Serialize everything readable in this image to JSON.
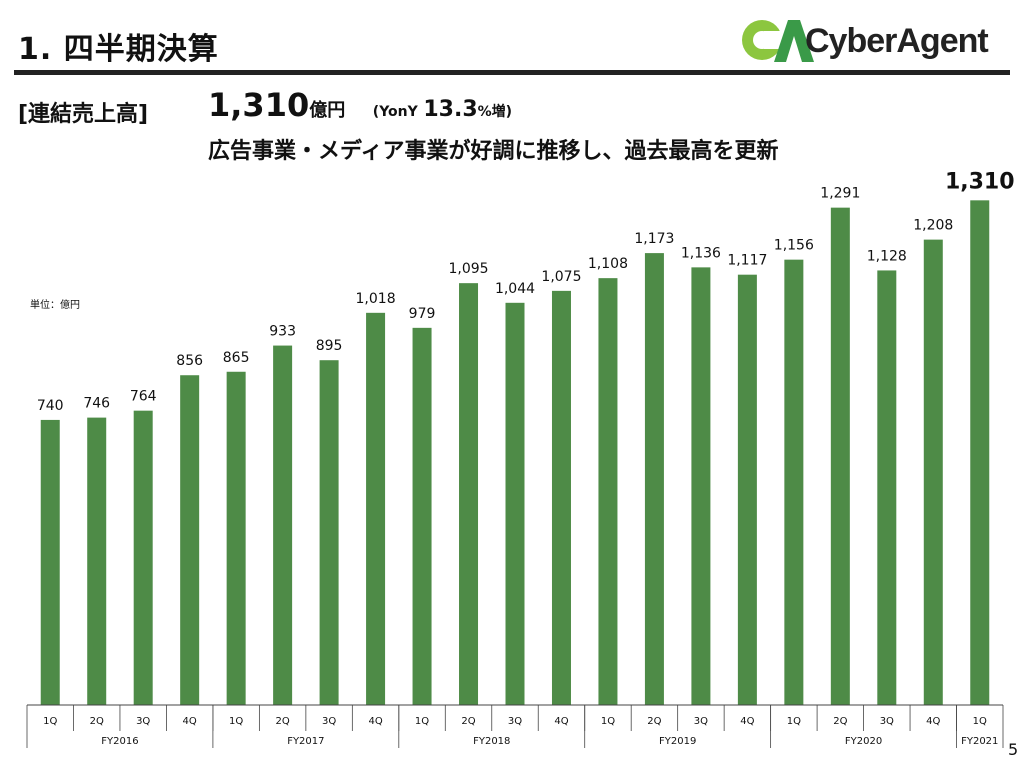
{
  "header": {
    "title": "1. 四半期決算",
    "logo_text": "CyberAgent",
    "logo_mark": "CA"
  },
  "summary": {
    "label": "[連結売上高]",
    "value": "1,310",
    "value_unit": "億円",
    "yoy_prefix": "(YonY",
    "yoy_value": "13.3",
    "yoy_suffix": "%増)",
    "note": "広告事業・メディア事業が好調に推移し、過去最高を更新"
  },
  "page_number": "5",
  "colors": {
    "bar": "#4e8b47",
    "rule": "#222222"
  },
  "chart_data": {
    "type": "bar",
    "unit_label": "単位：億円",
    "categories": [
      "1Q",
      "2Q",
      "3Q",
      "4Q",
      "1Q",
      "2Q",
      "3Q",
      "4Q",
      "1Q",
      "2Q",
      "3Q",
      "4Q",
      "1Q",
      "2Q",
      "3Q",
      "4Q",
      "1Q",
      "2Q",
      "3Q",
      "4Q",
      "1Q"
    ],
    "groups": [
      {
        "label": "FY2016",
        "count": 4
      },
      {
        "label": "FY2017",
        "count": 4
      },
      {
        "label": "FY2018",
        "count": 4
      },
      {
        "label": "FY2019",
        "count": 4
      },
      {
        "label": "FY2020",
        "count": 4
      },
      {
        "label": "FY2021",
        "count": 1
      }
    ],
    "values": [
      740,
      746,
      764,
      856,
      865,
      933,
      895,
      1018,
      979,
      1095,
      1044,
      1075,
      1108,
      1173,
      1136,
      1117,
      1156,
      1291,
      1128,
      1208,
      1310
    ],
    "data_labels": [
      "740",
      "746",
      "764",
      "856",
      "865",
      "933",
      "895",
      "1,018",
      "979",
      "1,095",
      "1,044",
      "1,075",
      "1,108",
      "1,173",
      "1,136",
      "1,117",
      "1,156",
      "1,291",
      "1,128",
      "1,208",
      "1,310"
    ],
    "ylim": [
      0,
      1830
    ],
    "grid": false
  }
}
